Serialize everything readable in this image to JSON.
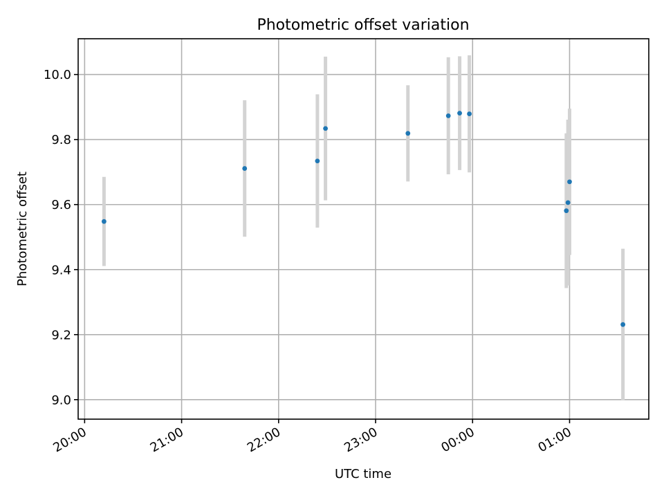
{
  "chart_data": {
    "type": "scatter",
    "title": "Photometric offset variation",
    "xlabel": "UTC time",
    "ylabel": "Photometric offset",
    "x_axis_kind": "time",
    "x_tick_values": [
      "20:00",
      "21:00",
      "22:00",
      "23:00",
      "00:00",
      "01:00"
    ],
    "x_tick_labels": [
      "20:00",
      "21:00",
      "22:00",
      "23:00",
      "00:00",
      "01:00"
    ],
    "xlim": [
      "19:56",
      "01:49"
    ],
    "y_ticks": [
      9.0,
      9.2,
      9.4,
      9.6,
      9.8,
      10.0
    ],
    "y_tick_labels": [
      "9.0",
      "9.2",
      "9.4",
      "9.6",
      "9.8",
      "10.0"
    ],
    "ylim": [
      8.94,
      10.11
    ],
    "grid": true,
    "series": [
      {
        "marker_color": "#1f77b4",
        "errorbar_color": "#d3d3d3",
        "points": [
          {
            "x": "20:12",
            "y": 9.548,
            "yerr": 0.137
          },
          {
            "x": "21:39",
            "y": 9.711,
            "yerr": 0.21
          },
          {
            "x": "22:24",
            "y": 9.734,
            "yerr": 0.205
          },
          {
            "x": "22:29",
            "y": 9.834,
            "yerr": 0.221
          },
          {
            "x": "23:20",
            "y": 9.819,
            "yerr": 0.148
          },
          {
            "x": "23:45",
            "y": 9.873,
            "yerr": 0.18
          },
          {
            "x": "23:52",
            "y": 9.881,
            "yerr": 0.175
          },
          {
            "x": "23:58",
            "y": 9.879,
            "yerr": 0.18
          },
          {
            "x": "00:58",
            "y": 9.581,
            "yerr": 0.238
          },
          {
            "x": "00:59",
            "y": 9.606,
            "yerr": 0.255
          },
          {
            "x": "01:00",
            "y": 9.67,
            "yerr": 0.225
          },
          {
            "x": "01:33",
            "y": 9.231,
            "yerr": 0.233
          }
        ]
      }
    ]
  }
}
